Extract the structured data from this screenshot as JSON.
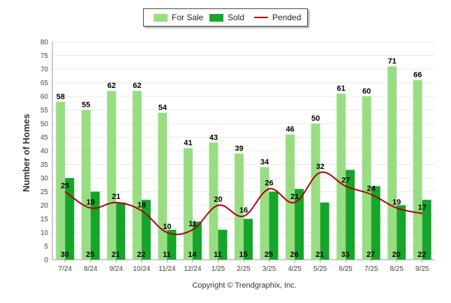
{
  "legend": {
    "for_sale": "For Sale",
    "sold": "Sold",
    "pended": "Pended"
  },
  "copyright": "Copyright © Trendgraphix, Inc.",
  "colors": {
    "for_sale": "#99dd83",
    "sold": "#16a52b",
    "pended": "#b00000",
    "grid": "#e8e8e8"
  },
  "chart_data": {
    "type": "bar",
    "title": "",
    "xlabel": "",
    "ylabel": "Number of Homes",
    "ylim": [
      0,
      80
    ],
    "yticks": [
      0,
      5,
      10,
      15,
      20,
      25,
      30,
      35,
      40,
      45,
      50,
      55,
      60,
      65,
      70,
      75,
      80
    ],
    "categories": [
      "7/24",
      "8/24",
      "9/24",
      "10/24",
      "11/24",
      "12/24",
      "1/25",
      "2/25",
      "3/25",
      "4/25",
      "5/25",
      "6/25",
      "7/25",
      "8/25",
      "9/25"
    ],
    "series": [
      {
        "name": "For Sale",
        "kind": "bar",
        "values": [
          58,
          55,
          62,
          62,
          54,
          41,
          43,
          39,
          34,
          46,
          50,
          61,
          60,
          71,
          66
        ]
      },
      {
        "name": "Sold",
        "kind": "bar",
        "values": [
          30,
          25,
          21,
          22,
          11,
          14,
          11,
          15,
          25,
          26,
          21,
          33,
          27,
          20,
          22
        ]
      },
      {
        "name": "Pended",
        "kind": "line",
        "values": [
          25,
          19,
          21,
          18,
          10,
          11,
          20,
          16,
          26,
          21,
          32,
          27,
          24,
          19,
          17
        ]
      }
    ]
  }
}
